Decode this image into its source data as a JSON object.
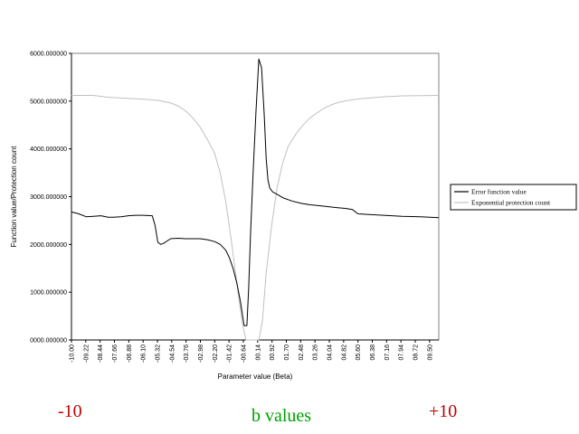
{
  "chart_data": {
    "type": "line",
    "xlabel": "Parameter value (Beta)",
    "ylabel": "Function value/Protection count",
    "xlim": [
      -10,
      10
    ],
    "ylim": [
      0,
      6000
    ],
    "y_ticks": [
      0,
      1000,
      2000,
      3000,
      4000,
      5000,
      6000
    ],
    "y_tick_labels": [
      "0000.000000",
      "1000.000000",
      "2000.000000",
      "3000.000000",
      "4000.000000",
      "5000.000000",
      "6000.000000"
    ],
    "x_tick_labels": [
      "-10.00",
      "-09.22",
      "-08.44",
      "-07.66",
      "-06.88",
      "-06.10",
      "-05.32",
      "-04.54",
      "-03.76",
      "-02.98",
      "-02.20",
      "-01.42",
      "-00.64",
      "00.14",
      "00.92",
      "01.70",
      "02.48",
      "03.26",
      "04.04",
      "04.82",
      "05.60",
      "06.38",
      "07.16",
      "07.94",
      "08.72",
      "09.50"
    ],
    "grid": false,
    "legend_position": "right",
    "series": [
      {
        "name": "Error function value",
        "color": "#000000",
        "x": [
          -10,
          -9.6,
          -9.2,
          -8.8,
          -8.4,
          -8.0,
          -7.7,
          -7.3,
          -6.9,
          -6.5,
          -6.1,
          -5.6,
          -5.45,
          -5.3,
          -5.15,
          -5.0,
          -4.6,
          -4.2,
          -3.8,
          -3.4,
          -3.0,
          -2.6,
          -2.2,
          -1.9,
          -1.6,
          -1.4,
          -1.2,
          -1.0,
          -0.8,
          -0.6,
          -0.45,
          -0.35,
          -0.25,
          -0.1,
          0.05,
          0.2,
          0.35,
          0.5,
          0.6,
          0.7,
          0.8,
          0.95,
          1.2,
          1.5,
          2.0,
          2.5,
          3.0,
          3.5,
          4.0,
          4.5,
          5.0,
          5.3,
          5.6,
          6.0,
          7.0,
          8.0,
          9.0,
          10.0
        ],
        "y": [
          2680,
          2640,
          2580,
          2590,
          2600,
          2570,
          2570,
          2580,
          2600,
          2610,
          2610,
          2600,
          2400,
          2050,
          2000,
          2020,
          2120,
          2130,
          2120,
          2120,
          2120,
          2100,
          2060,
          2000,
          1880,
          1720,
          1500,
          1200,
          800,
          300,
          300,
          1100,
          2200,
          3600,
          4800,
          5880,
          5700,
          4700,
          3800,
          3350,
          3180,
          3100,
          3050,
          2980,
          2910,
          2860,
          2830,
          2810,
          2790,
          2770,
          2750,
          2730,
          2640,
          2630,
          2610,
          2590,
          2580,
          2560
        ]
      },
      {
        "name": "Exponential protection count",
        "color": "#c0c0c0",
        "x": [
          -10,
          -8.8,
          -8.0,
          -7.0,
          -6.0,
          -5.2,
          -4.6,
          -4.2,
          -3.8,
          -3.4,
          -3.0,
          -2.6,
          -2.2,
          -1.9,
          -1.6,
          -1.3,
          -1.0,
          -0.7,
          -0.5,
          -0.3,
          0.05,
          0.2,
          0.4,
          0.6,
          0.9,
          1.2,
          1.5,
          1.8,
          2.2,
          2.6,
          3.0,
          3.4,
          3.8,
          4.2,
          4.6,
          5.0,
          5.5,
          6.0,
          7.0,
          8.0,
          10.0
        ],
        "y": [
          5120,
          5120,
          5080,
          5060,
          5040,
          5010,
          4960,
          4900,
          4800,
          4650,
          4460,
          4200,
          3900,
          3500,
          2900,
          2100,
          1200,
          350,
          0,
          0,
          0,
          0,
          400,
          1400,
          2400,
          3200,
          3700,
          4050,
          4300,
          4500,
          4650,
          4760,
          4860,
          4930,
          4980,
          5010,
          5040,
          5060,
          5090,
          5110,
          5120
        ]
      }
    ]
  },
  "captions": {
    "left": "-10",
    "middle": "b values",
    "right": "+10"
  }
}
